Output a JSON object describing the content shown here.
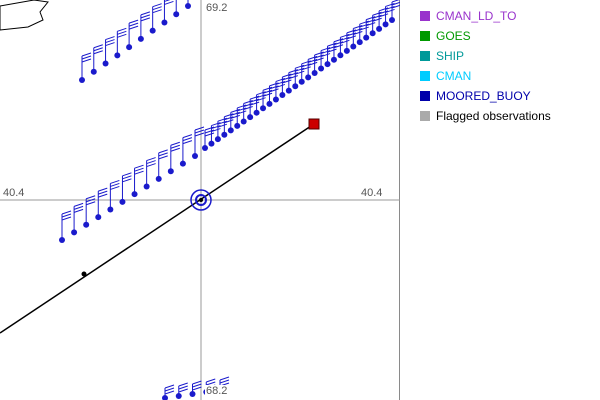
{
  "map": {
    "coordinates": {
      "top": "69.2",
      "left": "40.4",
      "right": "40.4",
      "bottom": "68.2"
    },
    "colors": {
      "axis": "#999999",
      "track": "#000000",
      "station": "#1a1acc",
      "barb": "#1a1acc",
      "destination_marker": "#cc0000"
    }
  },
  "legend": {
    "items": [
      {
        "label": "CMAN_LD_TO",
        "color": "#9933cc"
      },
      {
        "label": "GOES",
        "color": "#009900"
      },
      {
        "label": "SHIP",
        "color": "#009999"
      },
      {
        "label": "CMAN",
        "color": "#00ccff"
      },
      {
        "label": "MOORED_BUOY",
        "color": "#0000aa"
      },
      {
        "label": "Flagged observations",
        "color": "#aaaaaa",
        "text_color": "#000000"
      }
    ]
  }
}
